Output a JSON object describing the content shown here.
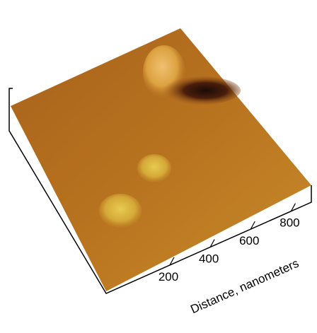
{
  "axis": {
    "label": "Distance, nanometers",
    "ticks": [
      200,
      400,
      600,
      800
    ],
    "lim": [
      -115,
      900
    ]
  }
}
